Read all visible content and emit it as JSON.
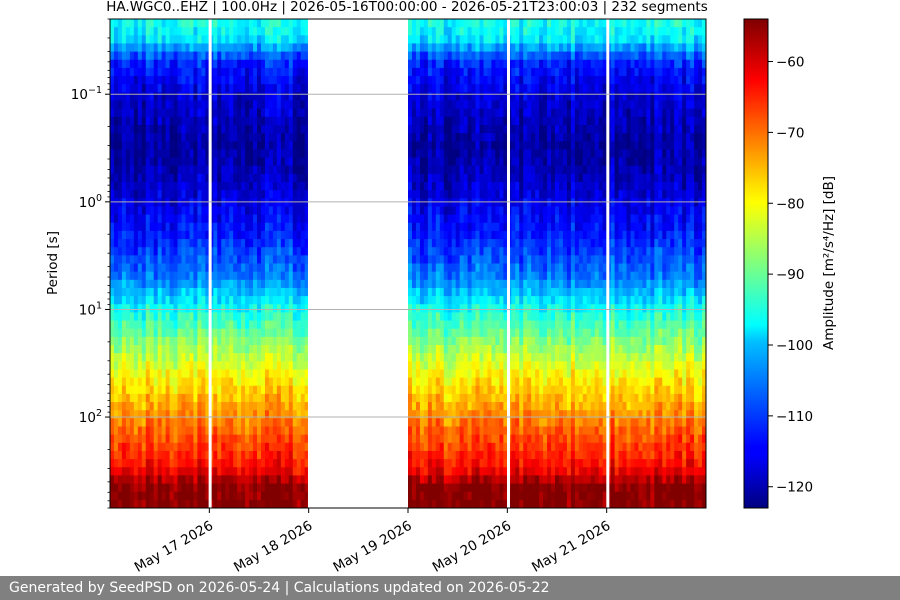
{
  "chart_data": {
    "type": "heatmap",
    "title": "HA.WGC0..EHZ | 100.0Hz | 2026-05-16T00:00:00 - 2026-05-21T23:00:03 | 232 segments",
    "ylabel": "Period [s]",
    "colorbar_label": "Amplitude [m²/s⁴/Hz] [dB]",
    "x_range": [
      "2026-05-16T00:00",
      "2026-05-22T00:00"
    ],
    "x_ticks": [
      {
        "value": "2026-05-17",
        "label": "May 17 2026"
      },
      {
        "value": "2026-05-18",
        "label": "May 18 2026"
      },
      {
        "value": "2026-05-19",
        "label": "May 19 2026"
      },
      {
        "value": "2026-05-20",
        "label": "May 20 2026"
      },
      {
        "value": "2026-05-21",
        "label": "May 21 2026"
      }
    ],
    "y_scale": "log",
    "y_inverted": true,
    "y_range": [
      0.02,
      700
    ],
    "y_ticks": [
      {
        "value": 0.1,
        "base": "10",
        "exp": "−1"
      },
      {
        "value": 1,
        "base": "10",
        "exp": "0"
      },
      {
        "value": 10,
        "base": "10",
        "exp": "1"
      },
      {
        "value": 100,
        "base": "10",
        "exp": "2"
      }
    ],
    "grid": true,
    "colormap": "jet",
    "color_range": [
      -123,
      -54
    ],
    "colorbar_ticks": [
      -60,
      -70,
      -80,
      -90,
      -100,
      -110,
      -120
    ],
    "colorbar_tick_labels": [
      "−60",
      "−70",
      "−80",
      "−90",
      "−100",
      "−110",
      "−120"
    ],
    "no_data_gaps": [
      {
        "start": "2026-05-16T23:50",
        "end": "2026-05-17T00:05"
      },
      {
        "start": "2026-05-17T23:50",
        "end": "2026-05-19T00:00"
      },
      {
        "start": "2026-05-19T23:55",
        "end": "2026-05-20T00:05"
      },
      {
        "start": "2026-05-20T23:55",
        "end": "2026-05-21T00:05"
      }
    ],
    "amplitude_profile": [
      {
        "period": 0.02,
        "db": -96
      },
      {
        "period": 0.03,
        "db": -98
      },
      {
        "period": 0.05,
        "db": -112
      },
      {
        "period": 0.1,
        "db": -117
      },
      {
        "period": 0.3,
        "db": -121
      },
      {
        "period": 0.6,
        "db": -119
      },
      {
        "period": 1,
        "db": -116
      },
      {
        "period": 2,
        "db": -113
      },
      {
        "period": 5,
        "db": -106
      },
      {
        "period": 10,
        "db": -96
      },
      {
        "period": 20,
        "db": -88
      },
      {
        "period": 40,
        "db": -80
      },
      {
        "period": 80,
        "db": -74
      },
      {
        "period": 150,
        "db": -68
      },
      {
        "period": 300,
        "db": -63
      },
      {
        "period": 450,
        "db": -54
      },
      {
        "period": 700,
        "db": -54
      }
    ]
  },
  "footer": {
    "text": "Generated by SeedPSD on 2026-05-24 | Calculations updated on 2026-05-22"
  }
}
